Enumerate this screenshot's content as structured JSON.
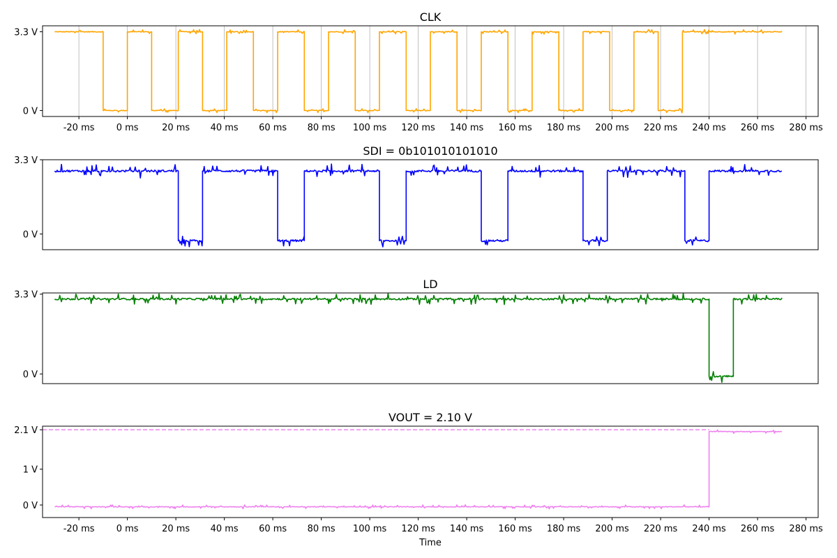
{
  "chart_data": [
    {
      "type": "line",
      "title": "CLK",
      "color": "#ffa500",
      "xlim": [
        -35,
        285
      ],
      "ylim": [
        -0.25,
        3.55
      ],
      "x_ticks": [
        -20,
        0,
        20,
        40,
        60,
        80,
        100,
        120,
        140,
        160,
        180,
        200,
        220,
        240,
        260,
        280
      ],
      "x_tick_labels": [
        "-20 ms",
        "0 ms",
        "20 ms",
        "40 ms",
        "60 ms",
        "80 ms",
        "100 ms",
        "120 ms",
        "140 ms",
        "160 ms",
        "180 ms",
        "200 ms",
        "220 ms",
        "240 ms",
        "260 ms",
        "280 ms"
      ],
      "y_ticks": [
        0,
        3.3
      ],
      "y_tick_labels": [
        "0 V",
        "3.3 V"
      ],
      "grid_x": [
        -20,
        0,
        20,
        40,
        60,
        80,
        100,
        120,
        140,
        160,
        180,
        200,
        220,
        240,
        260,
        280
      ],
      "series": [
        {
          "steps": [
            [
              -30,
              3.3
            ],
            [
              -10,
              0
            ],
            [
              0,
              3.3
            ],
            [
              10,
              0
            ],
            [
              21,
              3.3
            ],
            [
              31,
              0
            ],
            [
              41,
              3.3
            ],
            [
              52,
              0
            ],
            [
              62,
              3.3
            ],
            [
              73,
              0
            ],
            [
              83,
              3.3
            ],
            [
              94,
              0
            ],
            [
              104,
              3.3
            ],
            [
              115,
              0
            ],
            [
              125,
              3.3
            ],
            [
              136,
              0
            ],
            [
              146,
              3.3
            ],
            [
              157,
              0
            ],
            [
              167,
              3.3
            ],
            [
              178,
              0
            ],
            [
              188,
              3.3
            ],
            [
              199,
              0
            ],
            [
              209,
              3.3
            ],
            [
              219,
              0
            ],
            [
              229,
              3.3
            ]
          ],
          "x_end": 270,
          "noise": 0.05
        }
      ]
    },
    {
      "type": "line",
      "title": "SDI = 0b101010101010",
      "color": "#0000ff",
      "xlim": [
        -35,
        285
      ],
      "ylim": [
        -0.7,
        3.3
      ],
      "y_ticks": [
        0,
        3.3
      ],
      "y_tick_labels": [
        "0 V",
        "3.3 V"
      ],
      "series": [
        {
          "steps": [
            [
              -30,
              2.8
            ],
            [
              21,
              -0.3
            ],
            [
              31,
              2.8
            ],
            [
              62,
              -0.3
            ],
            [
              73,
              2.8
            ],
            [
              104,
              -0.3
            ],
            [
              115,
              2.8
            ],
            [
              146,
              -0.3
            ],
            [
              157,
              2.8
            ],
            [
              188,
              -0.3
            ],
            [
              198,
              2.8
            ],
            [
              230,
              -0.3
            ],
            [
              240,
              2.8
            ]
          ],
          "x_end": 270,
          "noise": 0.15
        }
      ]
    },
    {
      "type": "line",
      "title": "LD",
      "color": "#008000",
      "xlim": [
        -35,
        285
      ],
      "ylim": [
        -0.4,
        3.35
      ],
      "y_ticks": [
        0,
        3.3
      ],
      "y_tick_labels": [
        "0 V",
        "3.3 V"
      ],
      "series": [
        {
          "steps": [
            [
              -30,
              3.1
            ],
            [
              240,
              -0.1
            ],
            [
              250,
              3.1
            ]
          ],
          "x_end": 270,
          "noise": 0.12
        }
      ]
    },
    {
      "type": "line",
      "title": "VOUT = 2.10 V",
      "color": "#ee82ee",
      "xlabel": "Time",
      "xlim": [
        -35,
        285
      ],
      "ylim": [
        -0.35,
        2.2
      ],
      "x_ticks": [
        -20,
        0,
        20,
        40,
        60,
        80,
        100,
        120,
        140,
        160,
        180,
        200,
        220,
        240,
        260,
        280
      ],
      "x_tick_labels": [
        "-20 ms",
        "0 ms",
        "20 ms",
        "40 ms",
        "60 ms",
        "80 ms",
        "100 ms",
        "120 ms",
        "140 ms",
        "160 ms",
        "180 ms",
        "200 ms",
        "220 ms",
        "240 ms",
        "260 ms",
        "280 ms"
      ],
      "y_ticks": [
        0,
        1,
        2.1
      ],
      "y_tick_labels": [
        "0 V",
        "1 V",
        "2.1 V"
      ],
      "reference_line": {
        "y": 2.1,
        "x_from": -35,
        "x_to": 240,
        "style": "dashed"
      },
      "series": [
        {
          "steps": [
            [
              -30,
              -0.05
            ],
            [
              240,
              2.05
            ]
          ],
          "x_end": 270,
          "noise": 0.03
        }
      ]
    }
  ]
}
